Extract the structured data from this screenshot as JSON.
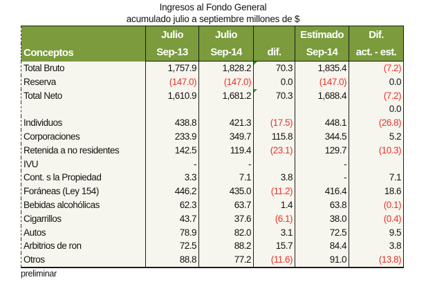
{
  "title": "Ingresos al Fondo General",
  "subtitle": "acumulado julio a septiembre millones de $",
  "header": {
    "row1": [
      "",
      "Julio",
      "Julio",
      "",
      "Estimado",
      "Dif."
    ],
    "row2": [
      "Conceptos",
      "Sep-13",
      "Sep-14",
      "dif.",
      "Sep-14",
      "act. - est."
    ]
  },
  "rows": [
    {
      "concept": "Total Bruto",
      "jul13": "1,757.9",
      "jul14": "1,828.2",
      "dif": "70.3",
      "est": "1,835.4",
      "difest": "(7.2)",
      "flag": true
    },
    {
      "concept": "Reserva",
      "jul13": "(147.0)",
      "jul14": "(147.0)",
      "dif": "0.0",
      "est": "(147.0)",
      "difest": "0.0"
    },
    {
      "concept": "Total Neto",
      "jul13": "1,610.9",
      "jul14": "1,681.2",
      "dif": "70.3",
      "est": "1,688.4",
      "difest": "(7.2)",
      "flag": true
    },
    {
      "concept": "",
      "jul13": "",
      "jul14": "",
      "dif": "",
      "est": "",
      "difest": "0.0"
    },
    {
      "concept": "Individuos",
      "jul13": "438.8",
      "jul14": "421.3",
      "dif": "(17.5)",
      "est": "448.1",
      "difest": "(26.8)"
    },
    {
      "concept": "Corporaciones",
      "jul13": "233.9",
      "jul14": "349.7",
      "dif": "115.8",
      "est": "344.5",
      "difest": "5.2"
    },
    {
      "concept": "Retenida a no residentes",
      "jul13": "142.5",
      "jul14": "119.4",
      "dif": "(23.1)",
      "est": "129.7",
      "difest": "(10.3)"
    },
    {
      "concept": "IVU",
      "jul13": "-",
      "jul14": "-",
      "dif": "",
      "est": "-",
      "difest": ""
    },
    {
      "concept": "Cont. s la Propiedad",
      "jul13": "3.3",
      "jul14": "7.1",
      "dif": "3.8",
      "est": "-",
      "difest": "7.1"
    },
    {
      "concept": "Foráneas (Ley 154)",
      "jul13": "446.2",
      "jul14": "435.0",
      "dif": "(11.2)",
      "est": "416.4",
      "difest": "18.6"
    },
    {
      "concept": "Bebidas alcohólicas",
      "jul13": "62.3",
      "jul14": "63.7",
      "dif": "1.4",
      "est": "63.8",
      "difest": "(0.1)"
    },
    {
      "concept": "Cigarrillos",
      "jul13": "43.7",
      "jul14": "37.6",
      "dif": "(6.1)",
      "est": "38.0",
      "difest": "(0.4)"
    },
    {
      "concept": "Autos",
      "jul13": "78.9",
      "jul14": "82.0",
      "dif": "3.1",
      "est": "72.5",
      "difest": "9.5"
    },
    {
      "concept": "Arbitrios de ron",
      "jul13": "72.5",
      "jul14": "88.2",
      "dif": "15.7",
      "est": "84.4",
      "difest": "3.8"
    },
    {
      "concept": "Otros",
      "jul13": "88.8",
      "jul14": "77.2",
      "dif": "(11.6)",
      "est": "91.0",
      "difest": "(13.8)"
    }
  ],
  "footnote": "preliminar",
  "colors": {
    "header_bg": "#7b9b3d",
    "negative": "#e8322c",
    "body_bg": "#f7f6ee"
  }
}
